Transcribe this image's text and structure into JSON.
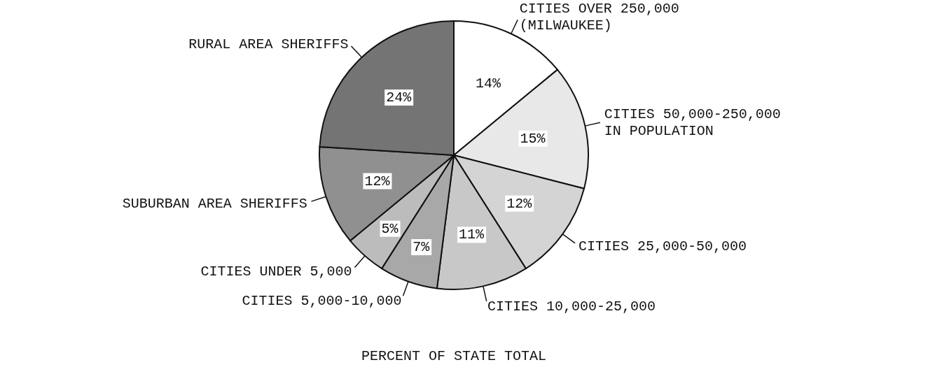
{
  "chart_data": {
    "type": "pie",
    "categories": [
      "CITIES OVER 250,000 (MILWAUKEE)",
      "CITIES 50,000-250,000 IN POPULATION",
      "CITIES 25,000-50,000",
      "CITIES 10,000-25,000",
      "CITIES 5,000-10,000",
      "CITIES UNDER 5,000",
      "SUBURBAN AREA SHERIFFS",
      "RURAL AREA SHERIFFS"
    ],
    "values": [
      14,
      15,
      12,
      11,
      7,
      5,
      12,
      24
    ],
    "value_labels": [
      "14%",
      "15%",
      "12%",
      "11%",
      "7%",
      "5%",
      "12%",
      "24%"
    ],
    "colors": [
      "#ffffff",
      "#e8e8e8",
      "#d4d4d4",
      "#c8c8c8",
      "#a8a8a8",
      "#bcbcbc",
      "#909090",
      "#747474"
    ],
    "annotations": [
      "PERCENT OF STATE TOTAL"
    ]
  }
}
